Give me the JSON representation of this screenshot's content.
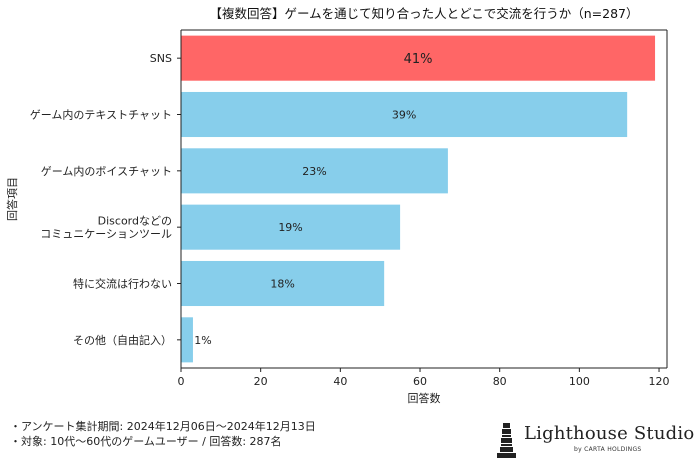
{
  "chart_data": {
    "type": "bar",
    "orientation": "horizontal",
    "title": "【複数回答】ゲームを通じて知り合った人とどこで交流を行うか（n=287）",
    "categories": [
      [
        "SNS"
      ],
      [
        "ゲーム内のテキストチャット"
      ],
      [
        "ゲーム内のボイスチャット"
      ],
      [
        "Discordなどの",
        "コミュニケーションツール"
      ],
      [
        "特に交流は行わない"
      ],
      [
        "その他（自由記入）"
      ]
    ],
    "values": [
      119,
      112,
      67,
      55,
      51,
      3
    ],
    "data_labels": [
      "41%",
      "39%",
      "23%",
      "19%",
      "18%",
      "1%"
    ],
    "xlabel": "回答数",
    "ylabel": "回答項目",
    "xlim": [
      0,
      122
    ],
    "xticks": [
      0,
      20,
      40,
      60,
      80,
      100,
      120
    ],
    "grid": false,
    "highlight_index": 0,
    "colors": {
      "default": "#87CEEB",
      "highlight": "#FF6666",
      "axis": "#222222"
    }
  },
  "footnotes": {
    "period": "・アンケート集計期間: 2024年12月06日〜2024年12月13日",
    "target": "・対象: 10代〜60代のゲームユーザー / 回答数: 287名"
  },
  "logo": {
    "name": "Lighthouse Studio",
    "subtitle": "by CARTA HOLDINGS"
  }
}
